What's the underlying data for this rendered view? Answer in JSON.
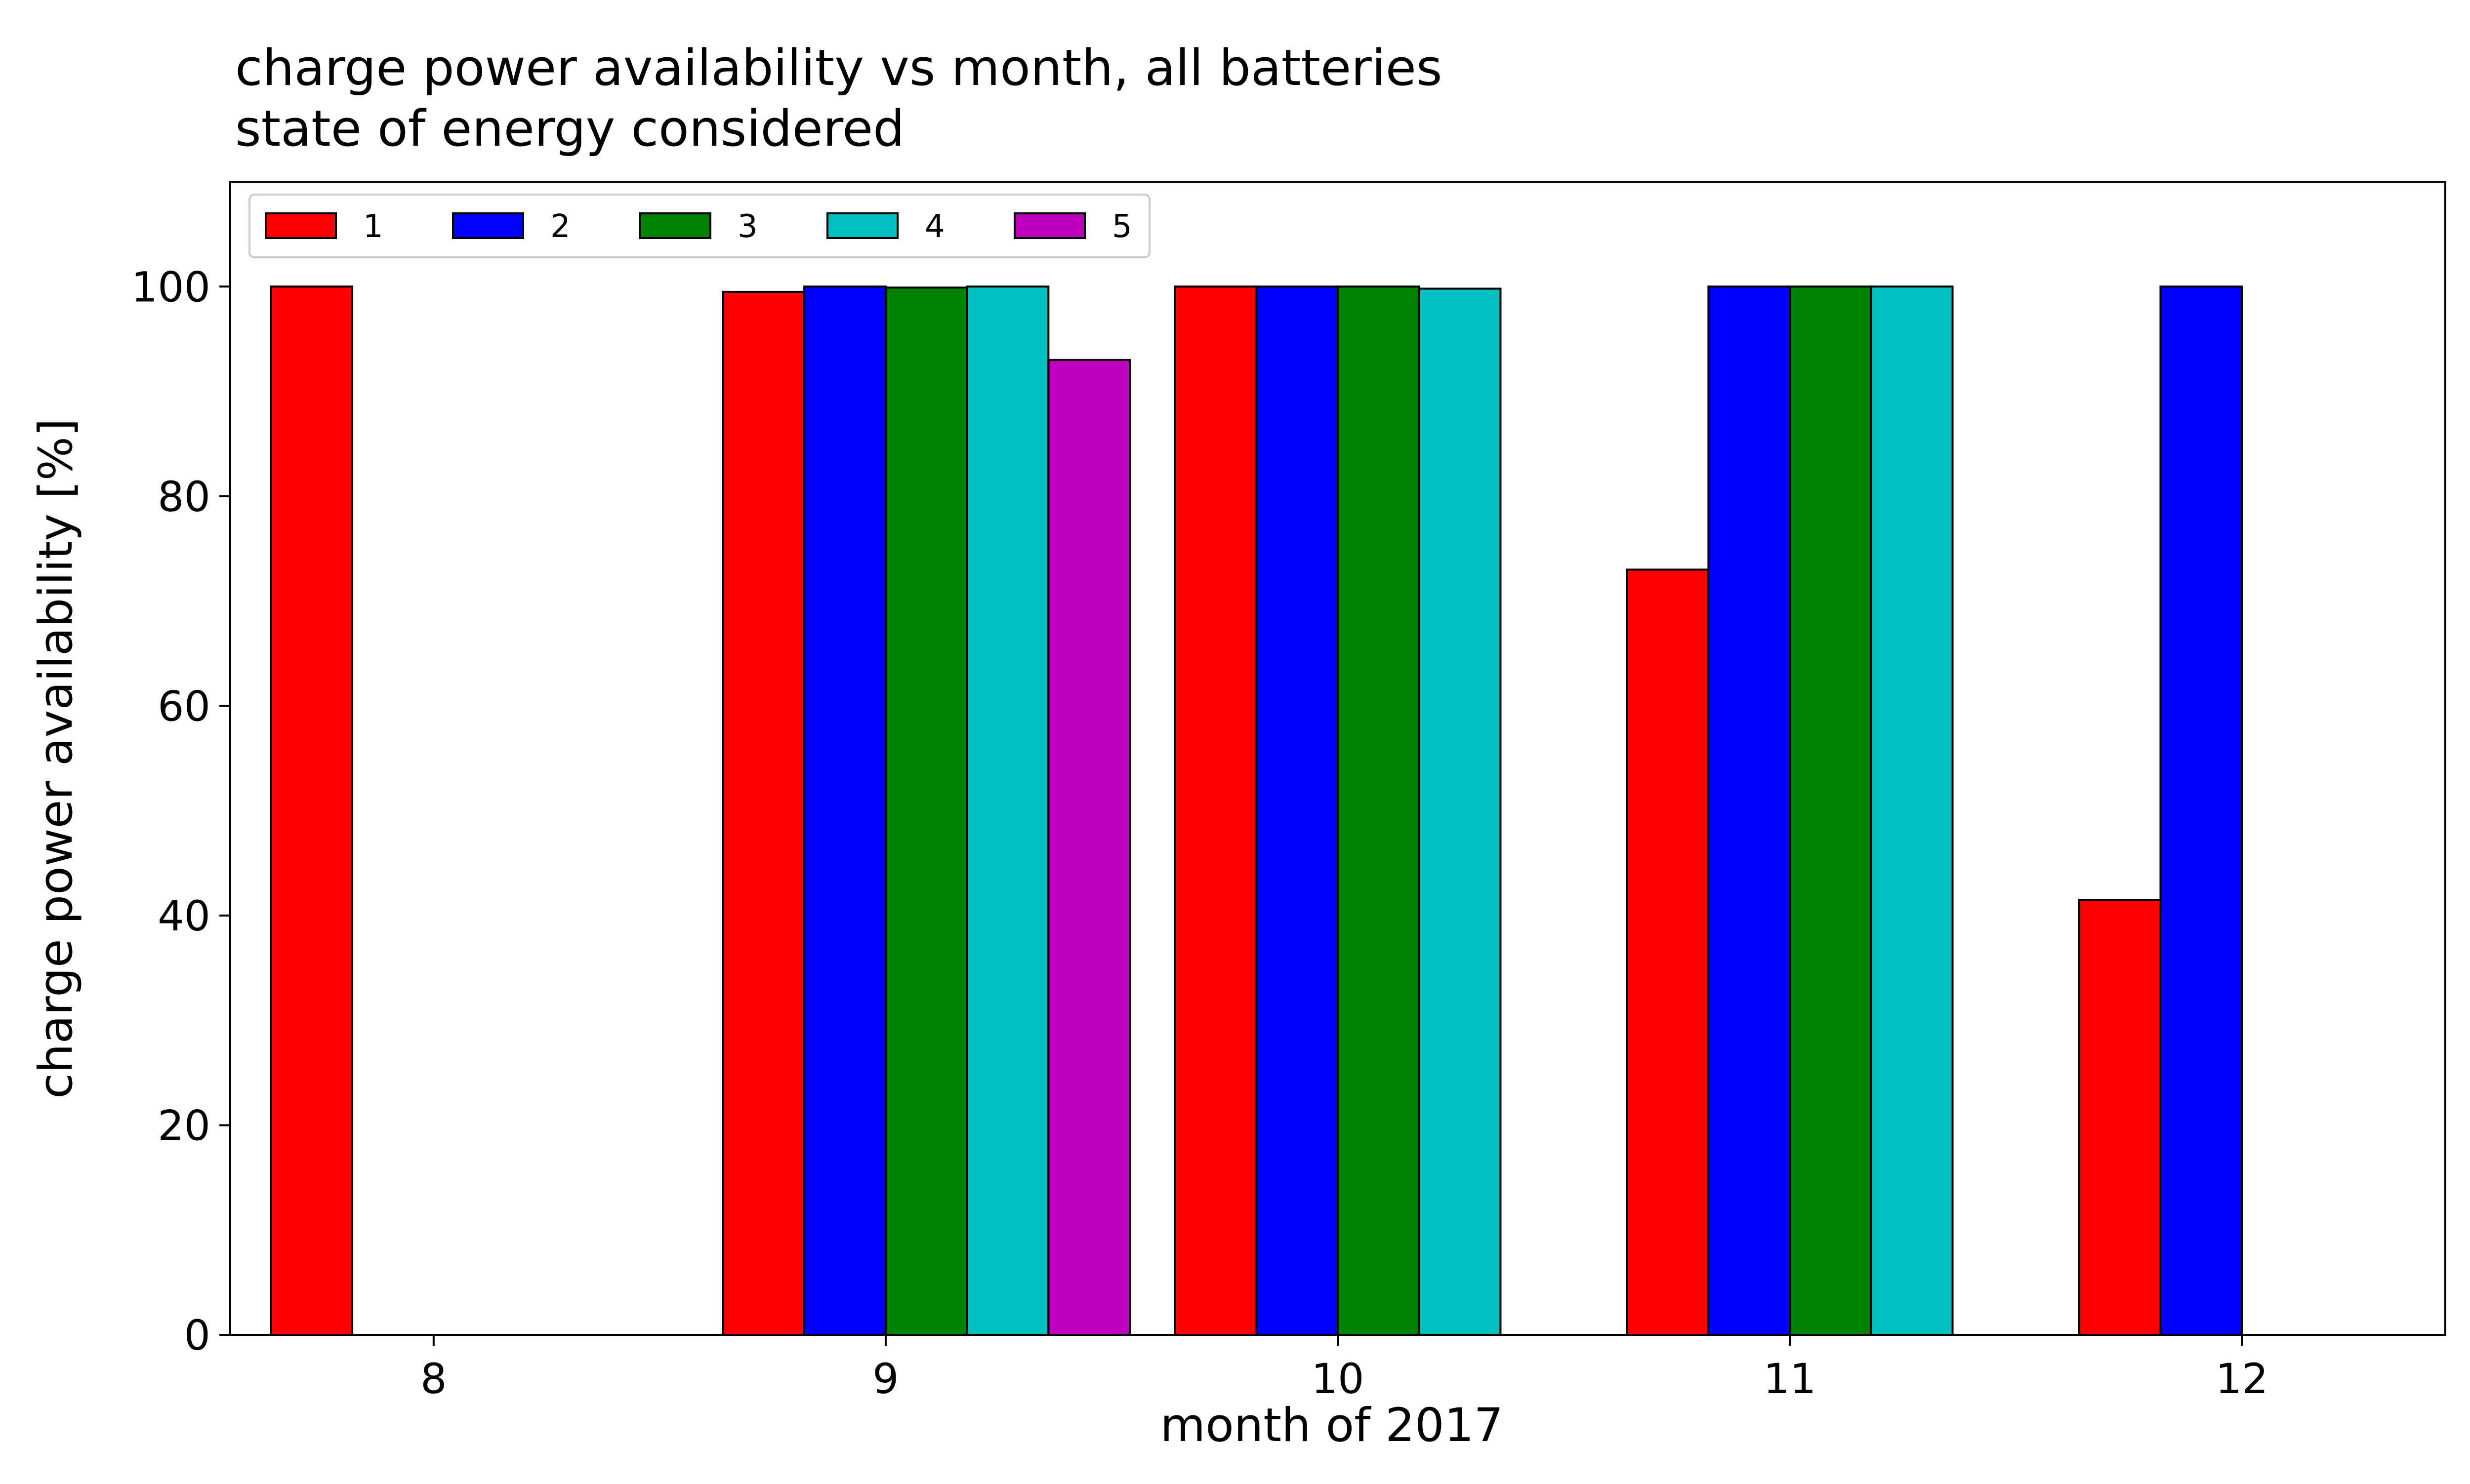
{
  "chart_data": {
    "type": "bar",
    "title_lines": [
      "charge power availability vs month, all batteries",
      "state of energy considered"
    ],
    "xlabel": "month of 2017",
    "ylabel": "charge power availability [%]",
    "categories": [
      "8",
      "9",
      "10",
      "11",
      "12"
    ],
    "ylim": [
      0,
      110
    ],
    "yticks": [
      "0",
      "20",
      "40",
      "60",
      "80",
      "100"
    ],
    "grid": false,
    "legend_position": "top-left",
    "series": [
      {
        "name": "1",
        "color": "#ff0000",
        "values": [
          100,
          99.5,
          100,
          73,
          41.5
        ]
      },
      {
        "name": "2",
        "color": "#0000ff",
        "values": [
          null,
          100,
          100,
          100,
          100
        ]
      },
      {
        "name": "3",
        "color": "#008000",
        "values": [
          null,
          99.9,
          100,
          100,
          null
        ]
      },
      {
        "name": "4",
        "color": "#00bfbf",
        "values": [
          null,
          100,
          99.8,
          100,
          null
        ]
      },
      {
        "name": "5",
        "color": "#bf00bf",
        "values": [
          null,
          93,
          null,
          null,
          null
        ]
      }
    ]
  }
}
